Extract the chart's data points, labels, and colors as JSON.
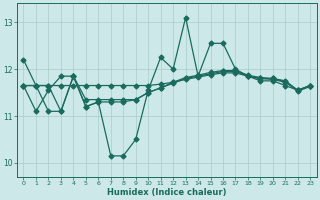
{
  "title": "",
  "xlabel": "Humidex (Indice chaleur)",
  "ylabel": "",
  "bg_color": "#cce8e8",
  "line_color": "#1a6b5e",
  "grid_color": "#aacccc",
  "xlim": [
    -0.5,
    23.5
  ],
  "ylim": [
    9.7,
    13.4
  ],
  "yticks": [
    10,
    11,
    12,
    13
  ],
  "xticks": [
    0,
    1,
    2,
    3,
    4,
    5,
    6,
    7,
    8,
    9,
    10,
    11,
    12,
    13,
    14,
    15,
    16,
    17,
    18,
    19,
    20,
    21,
    22,
    23
  ],
  "line1_x": [
    0,
    1,
    2,
    3,
    4,
    5,
    6,
    7,
    8,
    9,
    10,
    11,
    12,
    13,
    14,
    15,
    16,
    17,
    18,
    19,
    20,
    21,
    22,
    23
  ],
  "line1_y": [
    12.2,
    11.65,
    11.65,
    11.1,
    11.85,
    11.2,
    11.3,
    10.15,
    10.15,
    10.5,
    11.55,
    12.25,
    12.0,
    13.1,
    11.85,
    12.55,
    12.55,
    12.0,
    11.85,
    11.75,
    11.75,
    11.65,
    11.55,
    11.65
  ],
  "line2_x": [
    0,
    1,
    2,
    3,
    4,
    5,
    6,
    7,
    8,
    9,
    10,
    11,
    12,
    13,
    14,
    15,
    16,
    17,
    18,
    19,
    20,
    21,
    22,
    23
  ],
  "line2_y": [
    11.65,
    11.1,
    11.55,
    11.85,
    11.85,
    11.35,
    11.35,
    11.35,
    11.35,
    11.35,
    11.5,
    11.6,
    11.7,
    11.8,
    11.85,
    11.9,
    11.95,
    11.95,
    11.85,
    11.8,
    11.8,
    11.75,
    11.55,
    11.65
  ],
  "line3_x": [
    0,
    1,
    2,
    3,
    4,
    5,
    6,
    7,
    8,
    9,
    10,
    11,
    12,
    13,
    14,
    15,
    16,
    17,
    18,
    19,
    20,
    21,
    22,
    23
  ],
  "line3_y": [
    11.65,
    11.65,
    11.1,
    11.1,
    11.85,
    11.2,
    11.3,
    11.3,
    11.3,
    11.35,
    11.5,
    11.6,
    11.72,
    11.82,
    11.87,
    11.93,
    11.97,
    11.97,
    11.87,
    11.82,
    11.8,
    11.73,
    11.53,
    11.63
  ],
  "line4_x": [
    0,
    1,
    2,
    3,
    4,
    5,
    6,
    7,
    8,
    9,
    10,
    11,
    12,
    13,
    14,
    15,
    16,
    17,
    18,
    19,
    20,
    21,
    22,
    23
  ],
  "line4_y": [
    11.65,
    11.65,
    11.65,
    11.65,
    11.65,
    11.65,
    11.65,
    11.65,
    11.65,
    11.65,
    11.65,
    11.68,
    11.72,
    11.78,
    11.83,
    11.88,
    11.92,
    11.92,
    11.85,
    11.8,
    11.78,
    11.72,
    11.55,
    11.65
  ],
  "marker_size": 2.5,
  "line_width": 0.9
}
